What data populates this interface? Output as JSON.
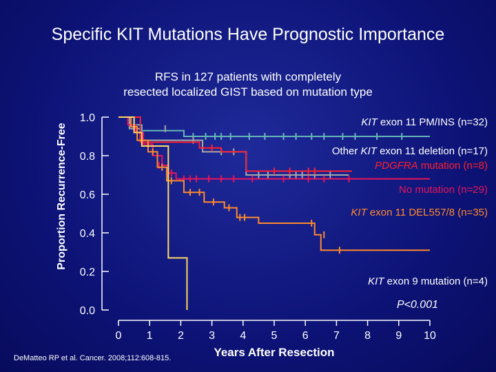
{
  "title": "Specific KIT Mutations Have Prognostic Importance",
  "subtitle_line1": "RFS in 127 patients with completely",
  "subtitle_line2": "resected localized GIST based on mutation type",
  "citation": "DeMatteo RP et al. Cancer. 2008;112:608-815.",
  "chart_data": {
    "type": "line",
    "subtype": "kaplan-meier",
    "xlabel": "Years After Resection",
    "ylabel": "Proportion Recurrence-Free",
    "xlim": [
      0,
      10
    ],
    "ylim": [
      0,
      1
    ],
    "xticks": [
      "0",
      "1",
      "2",
      "3",
      "4",
      "5",
      "6",
      "7",
      "8",
      "9",
      "10"
    ],
    "yticks": [
      "0.0",
      "0.2",
      "0.4",
      "0.6",
      "0.8",
      "1.0"
    ],
    "p_value": "P<0.001",
    "series": [
      {
        "name": "KIT exon 11 PM/INS (n=32)",
        "color": "#66b8b8",
        "steps": [
          [
            0,
            1.0
          ],
          [
            0.5,
            0.96
          ],
          [
            0.75,
            0.93
          ],
          [
            2.1,
            0.93
          ],
          [
            2.1,
            0.9
          ],
          [
            10,
            0.9
          ]
        ],
        "censors": [
          [
            2.4,
            0.9
          ],
          [
            2.8,
            0.9
          ],
          [
            3.1,
            0.9
          ],
          [
            3.3,
            0.9
          ],
          [
            3.6,
            0.9
          ],
          [
            4.2,
            0.9
          ],
          [
            4.7,
            0.9
          ],
          [
            5.3,
            0.9
          ],
          [
            5.7,
            0.9
          ],
          [
            6.2,
            0.9
          ],
          [
            6.6,
            0.9
          ],
          [
            7.2,
            0.9
          ],
          [
            7.6,
            0.9
          ],
          [
            8.3,
            0.9
          ],
          [
            9.1,
            0.9
          ]
        ]
      },
      {
        "name": "Other KIT exon 11 deletion (n=17)",
        "color": "#a8a8a8",
        "steps": [
          [
            0,
            1.0
          ],
          [
            0.35,
            0.94
          ],
          [
            0.7,
            0.88
          ],
          [
            2.7,
            0.88
          ],
          [
            2.7,
            0.82
          ],
          [
            4.1,
            0.82
          ],
          [
            4.1,
            0.7
          ],
          [
            7.4,
            0.7
          ]
        ],
        "censors": [
          [
            1.5,
            0.94
          ],
          [
            2.4,
            0.88
          ],
          [
            3.3,
            0.82
          ],
          [
            3.7,
            0.82
          ],
          [
            4.5,
            0.7
          ],
          [
            4.8,
            0.7
          ],
          [
            5.5,
            0.7
          ],
          [
            5.7,
            0.7
          ],
          [
            5.9,
            0.7
          ],
          [
            6.3,
            0.7
          ],
          [
            6.8,
            0.7
          ]
        ]
      },
      {
        "name": "PDGFRA mutation (n=8)",
        "color": "#ff2030",
        "steps": [
          [
            0,
            1.0
          ],
          [
            0.7,
            1.0
          ],
          [
            0.7,
            0.87
          ],
          [
            2.6,
            0.87
          ],
          [
            2.6,
            0.84
          ],
          [
            3.3,
            0.84
          ],
          [
            3.3,
            0.82
          ],
          [
            4.1,
            0.82
          ],
          [
            4.1,
            0.72
          ],
          [
            7.5,
            0.72
          ]
        ],
        "censors": [
          [
            3.0,
            0.84
          ],
          [
            5.0,
            0.72
          ],
          [
            5.5,
            0.72
          ],
          [
            6.1,
            0.72
          ],
          [
            6.3,
            0.72
          ]
        ]
      },
      {
        "name": "No mutation (n=29)",
        "color": "#e8155c",
        "steps": [
          [
            0,
            1.0
          ],
          [
            0.3,
            0.96
          ],
          [
            0.55,
            0.92
          ],
          [
            0.8,
            0.86
          ],
          [
            1.1,
            0.8
          ],
          [
            1.4,
            0.75
          ],
          [
            1.6,
            0.71
          ],
          [
            1.85,
            0.68
          ],
          [
            10,
            0.68
          ]
        ],
        "censors": [
          [
            1.3,
            0.75
          ],
          [
            1.7,
            0.71
          ],
          [
            2.1,
            0.68
          ],
          [
            2.3,
            0.68
          ],
          [
            2.5,
            0.68
          ],
          [
            2.9,
            0.68
          ],
          [
            3.3,
            0.68
          ],
          [
            3.7,
            0.68
          ],
          [
            4.3,
            0.68
          ],
          [
            5.3,
            0.68
          ],
          [
            6.1,
            0.68
          ],
          [
            6.6,
            0.68
          ],
          [
            7.4,
            0.68
          ]
        ]
      },
      {
        "name": "KIT exon 11 DEL557/8 (n=35)",
        "color": "#ff8a2e",
        "steps": [
          [
            0,
            1.0
          ],
          [
            0.4,
            0.95
          ],
          [
            0.6,
            0.88
          ],
          [
            0.95,
            0.82
          ],
          [
            1.25,
            0.74
          ],
          [
            1.55,
            0.67
          ],
          [
            2.1,
            0.61
          ],
          [
            2.75,
            0.56
          ],
          [
            3.4,
            0.53
          ],
          [
            3.8,
            0.48
          ],
          [
            4.5,
            0.45
          ],
          [
            6.3,
            0.39
          ],
          [
            6.5,
            0.31
          ],
          [
            10,
            0.31
          ]
        ],
        "censors": [
          [
            1.1,
            0.82
          ],
          [
            1.4,
            0.74
          ],
          [
            1.7,
            0.67
          ],
          [
            2.3,
            0.61
          ],
          [
            2.6,
            0.61
          ],
          [
            3.05,
            0.56
          ],
          [
            3.55,
            0.53
          ],
          [
            3.9,
            0.48
          ],
          [
            4.05,
            0.48
          ],
          [
            6.2,
            0.45
          ],
          [
            6.6,
            0.39
          ],
          [
            7.1,
            0.31
          ]
        ]
      },
      {
        "name": "KIT exon 9 mutation (n=4)",
        "color": "#ffd966",
        "steps": [
          [
            0,
            1.0
          ],
          [
            0.5,
            0.92
          ],
          [
            0.75,
            0.85
          ],
          [
            1.6,
            0.85
          ],
          [
            1.6,
            0.27
          ],
          [
            2.2,
            0.27
          ],
          [
            2.2,
            0.0
          ]
        ],
        "censors": []
      }
    ],
    "annotations": [
      {
        "label": "exon 11 PM/INS (n=32)",
        "italic_prefix": "KIT",
        "color": "#ffffff"
      },
      {
        "label": "Other ",
        "italic_part": "KIT",
        "label_rest": " exon 11 deletion (n=17)",
        "color": "#ffffff"
      },
      {
        "label": "mutation (n=8)",
        "italic_prefix": "PDGFRA",
        "color": "#ff2030"
      },
      {
        "label": "No mutation (n=29)",
        "color": "#e8155c"
      },
      {
        "label": "exon 11 DEL557/8 (n=35)",
        "italic_prefix": "KIT",
        "color": "#ff8a2e"
      },
      {
        "label": "exon 9 mutation (n=4)",
        "italic_prefix": "KIT",
        "color": "#ffffff"
      }
    ]
  }
}
